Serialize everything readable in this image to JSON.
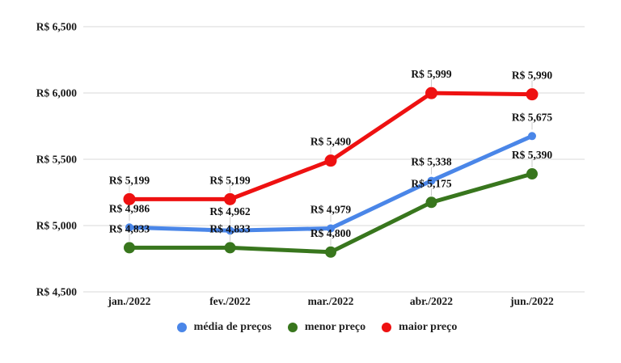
{
  "page": {
    "background": "#ffffff"
  },
  "colors": {
    "grid": "#d9d9d9",
    "stem": "#cccccc",
    "axis_text": "#1a1a1a",
    "annotation_text": "#111111",
    "background": "#ffffff"
  },
  "chart_data": {
    "type": "line",
    "title": "",
    "currency_prefix": "R$",
    "categories": [
      "jan./2022",
      "fev./2022",
      "mar./2022",
      "abr./2022",
      "jun./2022"
    ],
    "series": [
      {
        "name": "média de preços",
        "color": "#4a86e8",
        "values": [
          4986,
          4962,
          4979,
          5338,
          5675
        ],
        "labels": [
          "R$ 4,986",
          "R$ 4,962",
          "R$ 4,979",
          "R$ 5,338",
          "R$ 5,675"
        ]
      },
      {
        "name": "menor preço",
        "color": "#38761d",
        "values": [
          4833,
          4833,
          4800,
          5175,
          5390
        ],
        "labels": [
          "R$ 4,833",
          "R$ 4,833",
          "R$ 4,800",
          "R$ 5,175",
          "R$ 5,390"
        ]
      },
      {
        "name": "maior preço",
        "color": "#ee1111",
        "values": [
          5199,
          5199,
          5490,
          5999,
          5990
        ],
        "labels": [
          "R$ 5,199",
          "R$ 5,199",
          "R$ 5,490",
          "R$ 5,999",
          "R$ 5,990"
        ]
      }
    ],
    "y_axis": {
      "min": 4500,
      "max": 6500,
      "ticks": [
        {
          "value": 6500,
          "label": "R$ 6,500"
        },
        {
          "value": 6000,
          "label": "R$ 6,000"
        },
        {
          "value": 5500,
          "label": "R$ 5,500"
        },
        {
          "value": 5000,
          "label": "R$ 5,000"
        },
        {
          "value": 4500,
          "label": "R$ 4,500"
        }
      ]
    },
    "grid": true,
    "legend_position": "bottom",
    "point_labels_visible": true
  }
}
